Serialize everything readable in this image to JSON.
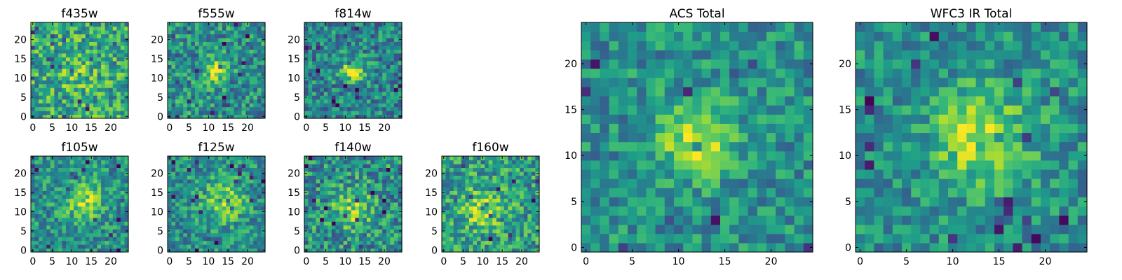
{
  "chart_data": [
    {
      "type": "heatmap",
      "title": "f435w",
      "x": [
        0,
        24
      ],
      "y": [
        0,
        24
      ],
      "xticks": [
        "0",
        "5",
        "10",
        "15",
        "20"
      ],
      "yticks": [
        "0",
        "5",
        "10",
        "15",
        "20"
      ],
      "colormap": "viridis",
      "peak": [
        11,
        11
      ],
      "peak_radius": 5,
      "peak_strength": 0.12,
      "noise": 0.55,
      "base": 0.6
    },
    {
      "type": "heatmap",
      "title": "f555w",
      "x": [
        0,
        24
      ],
      "y": [
        0,
        24
      ],
      "xticks": [
        "0",
        "5",
        "10",
        "15",
        "20"
      ],
      "yticks": [
        "0",
        "5",
        "10",
        "15",
        "20"
      ],
      "colormap": "viridis",
      "peak": [
        12,
        12
      ],
      "peak_radius": 3,
      "peak_strength": 0.45,
      "noise": 0.5,
      "base": 0.5
    },
    {
      "type": "heatmap",
      "title": "f814w",
      "x": [
        0,
        24
      ],
      "y": [
        0,
        24
      ],
      "xticks": [
        "0",
        "5",
        "10",
        "15",
        "20"
      ],
      "yticks": [
        "0",
        "5",
        "10",
        "15",
        "20"
      ],
      "colormap": "viridis",
      "peak": [
        12,
        12
      ],
      "peak_radius": 3,
      "peak_strength": 0.5,
      "noise": 0.5,
      "base": 0.45
    },
    {
      "type": "heatmap",
      "title": "f105w",
      "x": [
        0,
        24
      ],
      "y": [
        0,
        24
      ],
      "xticks": [
        "0",
        "5",
        "10",
        "15",
        "20"
      ],
      "yticks": [
        "0",
        "5",
        "10",
        "15",
        "20"
      ],
      "colormap": "viridis",
      "peak": [
        13,
        13
      ],
      "peak_radius": 5,
      "peak_strength": 0.35,
      "noise": 0.45,
      "base": 0.5
    },
    {
      "type": "heatmap",
      "title": "f125w",
      "x": [
        0,
        24
      ],
      "y": [
        0,
        24
      ],
      "xticks": [
        "0",
        "5",
        "10",
        "15",
        "20"
      ],
      "yticks": [
        "0",
        "5",
        "10",
        "15",
        "20"
      ],
      "colormap": "viridis",
      "peak": [
        14,
        13
      ],
      "peak_radius": 5,
      "peak_strength": 0.35,
      "noise": 0.45,
      "base": 0.5
    },
    {
      "type": "heatmap",
      "title": "f140w",
      "x": [
        0,
        24
      ],
      "y": [
        0,
        24
      ],
      "xticks": [
        "0",
        "5",
        "10",
        "15",
        "20"
      ],
      "yticks": [
        "0",
        "5",
        "10",
        "15",
        "20"
      ],
      "colormap": "viridis",
      "peak": [
        12,
        11
      ],
      "peak_radius": 5,
      "peak_strength": 0.3,
      "noise": 0.55,
      "base": 0.5
    },
    {
      "type": "heatmap",
      "title": "f160w",
      "x": [
        0,
        24
      ],
      "y": [
        0,
        24
      ],
      "xticks": [
        "0",
        "5",
        "10",
        "15",
        "20"
      ],
      "yticks": [
        "0",
        "5",
        "10",
        "15",
        "20"
      ],
      "colormap": "viridis",
      "peak": [
        10,
        11
      ],
      "peak_radius": 5,
      "peak_strength": 0.35,
      "noise": 0.5,
      "base": 0.55
    },
    {
      "type": "heatmap",
      "title": "ACS Total",
      "x": [
        0,
        24
      ],
      "y": [
        0,
        24
      ],
      "xticks": [
        "0",
        "5",
        "10",
        "15",
        "20"
      ],
      "yticks": [
        "0",
        "5",
        "10",
        "15",
        "20"
      ],
      "colormap": "viridis",
      "peak": [
        12,
        12
      ],
      "peak_radius": 4,
      "peak_strength": 0.45,
      "noise": 0.4,
      "base": 0.5
    },
    {
      "type": "heatmap",
      "title": "WFC3 IR Total",
      "x": [
        0,
        24
      ],
      "y": [
        0,
        24
      ],
      "xticks": [
        "0",
        "5",
        "10",
        "15",
        "20"
      ],
      "yticks": [
        "0",
        "5",
        "10",
        "15",
        "20"
      ],
      "colormap": "viridis",
      "peak": [
        13,
        12
      ],
      "peak_radius": 5,
      "peak_strength": 0.4,
      "noise": 0.4,
      "base": 0.5
    }
  ]
}
